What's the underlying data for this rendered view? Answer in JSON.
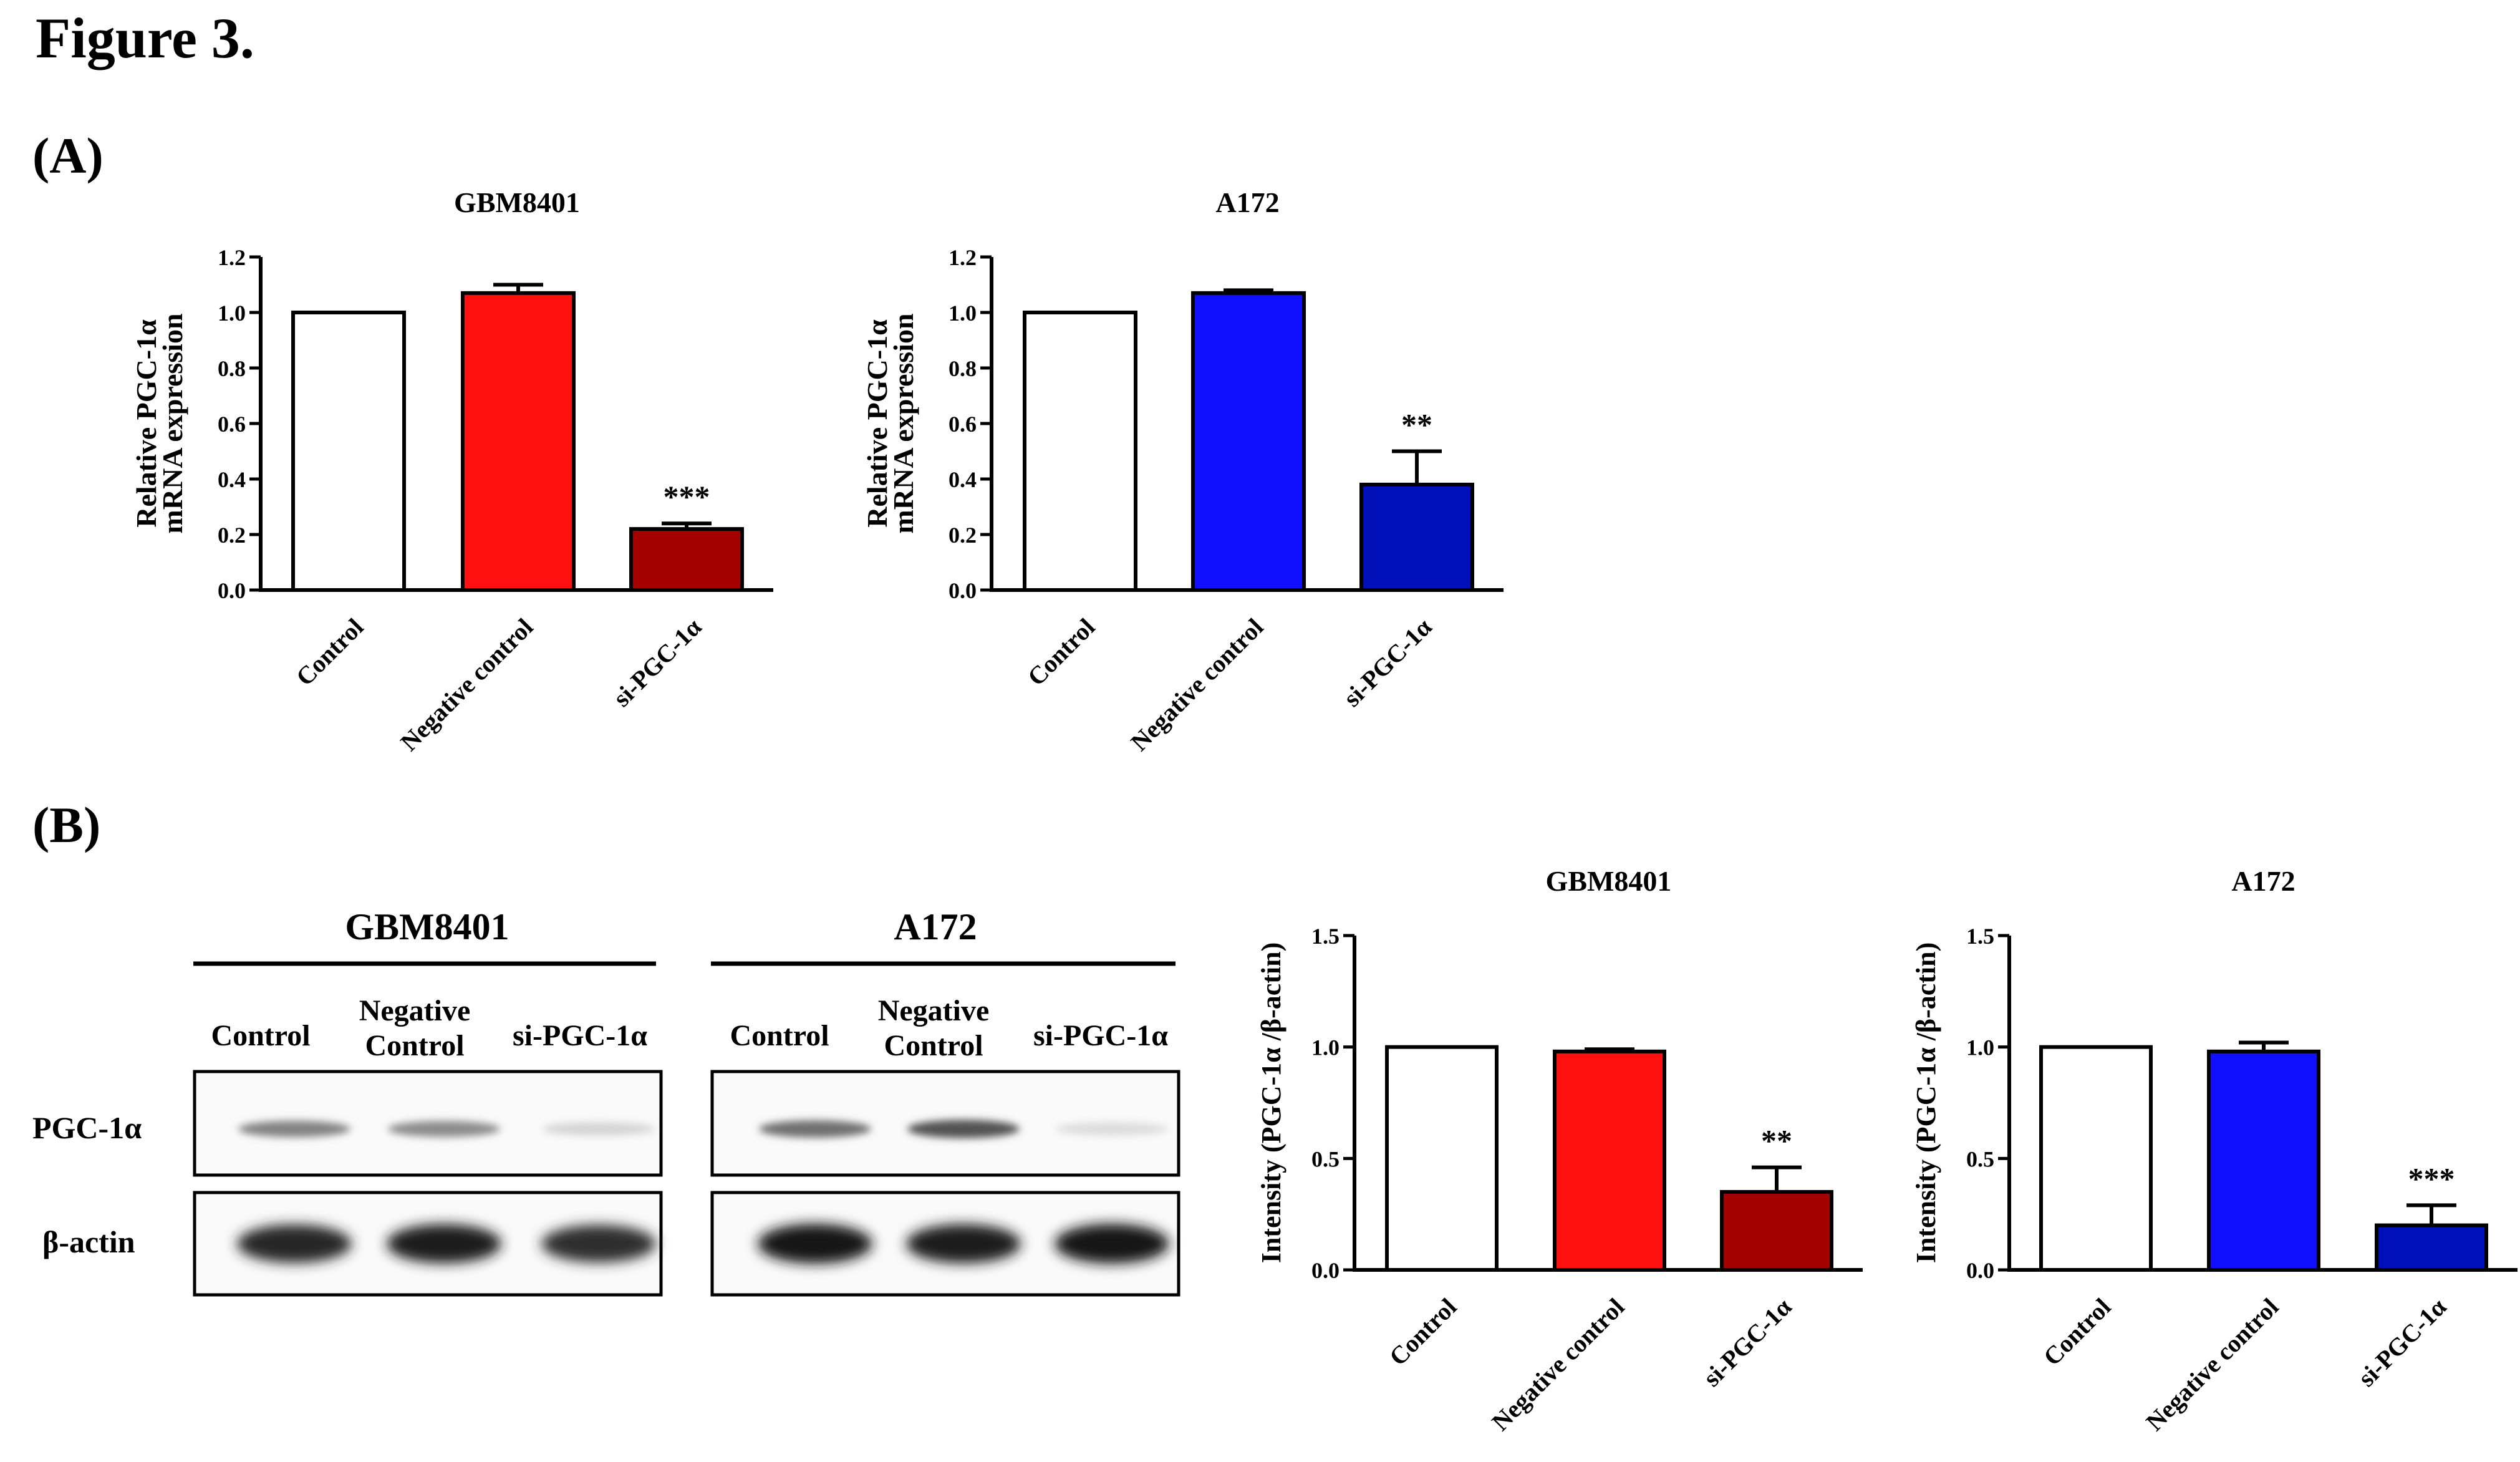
{
  "figure_title": "Figure 3.",
  "panel_a_label": "(A)",
  "panel_b_label": "(B)",
  "chart_data": [
    {
      "id": "A_gbm",
      "type": "bar",
      "title": "GBM8401",
      "ylabel_lines": [
        "Relative PGC-1α",
        "mRNA expression"
      ],
      "categories": [
        "Control",
        "Negative control",
        "si-PGC-1α"
      ],
      "values": [
        1.0,
        1.07,
        0.22
      ],
      "errors": [
        0,
        0.03,
        0.02
      ],
      "significance": [
        "",
        "",
        "***"
      ],
      "fills": [
        "#ffffff",
        "#ff1010",
        "#a50000"
      ],
      "ylim": [
        0,
        1.2
      ],
      "yticks": [
        0.0,
        0.2,
        0.4,
        0.6,
        0.8,
        1.0,
        1.2
      ],
      "ytick_labels": [
        "0.0",
        "0.2",
        "0.4",
        "0.6",
        "0.8",
        "1.0",
        "1.2"
      ]
    },
    {
      "id": "A_a172",
      "type": "bar",
      "title": "A172",
      "ylabel_lines": [
        "Relative PGC-1α",
        "mRNA expression"
      ],
      "categories": [
        "Control",
        "Negative control",
        "si-PGC-1α"
      ],
      "values": [
        1.0,
        1.07,
        0.38
      ],
      "errors": [
        0,
        0.01,
        0.12
      ],
      "significance": [
        "",
        "",
        "**"
      ],
      "fills": [
        "#ffffff",
        "#1010ff",
        "#0010b8"
      ],
      "ylim": [
        0,
        1.2
      ],
      "yticks": [
        0.0,
        0.2,
        0.4,
        0.6,
        0.8,
        1.0,
        1.2
      ],
      "ytick_labels": [
        "0.0",
        "0.2",
        "0.4",
        "0.6",
        "0.8",
        "1.0",
        "1.2"
      ]
    },
    {
      "id": "B_gbm",
      "type": "bar",
      "title": "GBM8401",
      "ylabel_lines": [
        "Intensity (PGC-1α /β-actin)"
      ],
      "categories": [
        "Control",
        "Negative control",
        "si-PGC-1α"
      ],
      "values": [
        1.0,
        0.98,
        0.35
      ],
      "errors": [
        0,
        0.01,
        0.11
      ],
      "significance": [
        "",
        "",
        "**"
      ],
      "fills": [
        "#ffffff",
        "#ff1010",
        "#a50000"
      ],
      "ylim": [
        0,
        1.5
      ],
      "yticks": [
        0.0,
        0.5,
        1.0,
        1.5
      ],
      "ytick_labels": [
        "0.0",
        "0.5",
        "1.0",
        "1.5"
      ]
    },
    {
      "id": "B_a172",
      "type": "bar",
      "title": "A172",
      "ylabel_lines": [
        "Intensity (PGC-1α /β-actin)"
      ],
      "categories": [
        "Control",
        "Negative control",
        "si-PGC-1α"
      ],
      "values": [
        1.0,
        0.98,
        0.2
      ],
      "errors": [
        0,
        0.04,
        0.09
      ],
      "significance": [
        "",
        "",
        "***"
      ],
      "fills": [
        "#ffffff",
        "#1010ff",
        "#0010b8"
      ],
      "ylim": [
        0,
        1.5
      ],
      "yticks": [
        0.0,
        0.5,
        1.0,
        1.5
      ],
      "ytick_labels": [
        "0.0",
        "0.5",
        "1.0",
        "1.5"
      ]
    }
  ],
  "western_blot": {
    "row_labels": [
      "PGC-1α",
      "β-actin"
    ],
    "panels": [
      {
        "cell_line": "GBM8401",
        "lanes": [
          "Control",
          "Negative Control",
          "si-PGC-1α"
        ],
        "pgc_band_intensity": [
          0.55,
          0.5,
          0.12
        ],
        "actin_band_intensity": [
          0.9,
          0.95,
          0.85
        ]
      },
      {
        "cell_line": "A172",
        "lanes": [
          "Control",
          "Negative Control",
          "si-PGC-1α"
        ],
        "pgc_band_intensity": [
          0.65,
          0.8,
          0.08
        ],
        "actin_band_intensity": [
          1.0,
          0.95,
          1.0
        ]
      }
    ]
  }
}
